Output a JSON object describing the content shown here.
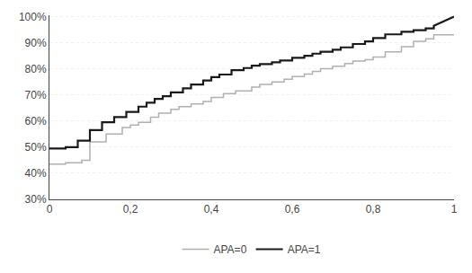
{
  "chart_data": {
    "type": "line",
    "series": [
      {
        "name": "APA=0",
        "color": "#b0b0b0",
        "x": [
          0,
          0.04,
          0.04,
          0.08,
          0.08,
          0.1,
          0.1,
          0.14,
          0.14,
          0.18,
          0.18,
          0.2,
          0.2,
          0.22,
          0.22,
          0.25,
          0.25,
          0.27,
          0.27,
          0.3,
          0.3,
          0.32,
          0.32,
          0.35,
          0.35,
          0.38,
          0.38,
          0.4,
          0.4,
          0.43,
          0.43,
          0.46,
          0.46,
          0.5,
          0.5,
          0.52,
          0.52,
          0.55,
          0.55,
          0.58,
          0.58,
          0.6,
          0.6,
          0.63,
          0.63,
          0.65,
          0.65,
          0.67,
          0.67,
          0.7,
          0.7,
          0.73,
          0.73,
          0.75,
          0.75,
          0.78,
          0.78,
          0.8,
          0.8,
          0.83,
          0.83,
          0.87,
          0.87,
          0.9,
          0.9,
          0.93,
          0.93,
          0.95,
          0.95,
          1.0
        ],
        "values": [
          0.435,
          0.435,
          0.44,
          0.44,
          0.45,
          0.45,
          0.52,
          0.52,
          0.55,
          0.55,
          0.575,
          0.575,
          0.585,
          0.585,
          0.595,
          0.595,
          0.615,
          0.615,
          0.63,
          0.63,
          0.645,
          0.645,
          0.655,
          0.655,
          0.665,
          0.665,
          0.675,
          0.675,
          0.69,
          0.69,
          0.705,
          0.705,
          0.715,
          0.715,
          0.73,
          0.73,
          0.74,
          0.74,
          0.75,
          0.75,
          0.76,
          0.76,
          0.77,
          0.77,
          0.78,
          0.78,
          0.79,
          0.79,
          0.8,
          0.8,
          0.81,
          0.81,
          0.82,
          0.82,
          0.83,
          0.83,
          0.835,
          0.835,
          0.845,
          0.845,
          0.865,
          0.865,
          0.885,
          0.885,
          0.905,
          0.905,
          0.915,
          0.915,
          0.93,
          0.93
        ]
      },
      {
        "name": "APA=1",
        "color": "#1a1a1a",
        "x": [
          0,
          0.04,
          0.04,
          0.07,
          0.07,
          0.1,
          0.1,
          0.13,
          0.13,
          0.16,
          0.16,
          0.19,
          0.19,
          0.22,
          0.22,
          0.24,
          0.24,
          0.26,
          0.26,
          0.28,
          0.28,
          0.3,
          0.3,
          0.33,
          0.33,
          0.35,
          0.35,
          0.38,
          0.38,
          0.4,
          0.4,
          0.42,
          0.42,
          0.45,
          0.45,
          0.48,
          0.48,
          0.5,
          0.5,
          0.52,
          0.52,
          0.55,
          0.55,
          0.57,
          0.57,
          0.6,
          0.6,
          0.63,
          0.63,
          0.65,
          0.65,
          0.67,
          0.67,
          0.7,
          0.7,
          0.72,
          0.72,
          0.75,
          0.75,
          0.78,
          0.78,
          0.8,
          0.8,
          0.83,
          0.83,
          0.87,
          0.87,
          0.9,
          0.9,
          0.93,
          0.93,
          0.95,
          0.95,
          1.0
        ],
        "values": [
          0.495,
          0.495,
          0.5,
          0.5,
          0.525,
          0.525,
          0.565,
          0.565,
          0.595,
          0.595,
          0.615,
          0.615,
          0.635,
          0.635,
          0.655,
          0.655,
          0.67,
          0.67,
          0.685,
          0.685,
          0.695,
          0.695,
          0.71,
          0.71,
          0.725,
          0.725,
          0.74,
          0.74,
          0.755,
          0.755,
          0.768,
          0.768,
          0.778,
          0.778,
          0.795,
          0.795,
          0.803,
          0.803,
          0.812,
          0.812,
          0.818,
          0.818,
          0.825,
          0.825,
          0.832,
          0.832,
          0.842,
          0.842,
          0.85,
          0.85,
          0.858,
          0.858,
          0.865,
          0.865,
          0.873,
          0.873,
          0.882,
          0.882,
          0.895,
          0.895,
          0.905,
          0.905,
          0.918,
          0.918,
          0.932,
          0.932,
          0.942,
          0.942,
          0.948,
          0.948,
          0.955,
          0.955,
          0.965,
          1.0
        ]
      }
    ],
    "xlim": [
      0,
      1.0
    ],
    "ylim": [
      0.3,
      1.005
    ],
    "xticks": [
      0,
      {
        "value": 0.2,
        "label": "0,2"
      },
      {
        "value": 0.4,
        "label": "0,4"
      },
      {
        "value": 0.6,
        "label": "0,6"
      },
      {
        "value": 0.8,
        "label": "0,8"
      },
      1
    ],
    "yticks": [
      {
        "value": 0.3,
        "label": "30%"
      },
      {
        "value": 0.4,
        "label": "40%"
      },
      {
        "value": 0.5,
        "label": "50%"
      },
      {
        "value": 0.6,
        "label": "60%"
      },
      {
        "value": 0.7,
        "label": "70%"
      },
      {
        "value": 0.8,
        "label": "80%"
      },
      {
        "value": 0.9,
        "label": "90%"
      },
      {
        "value": 1.0,
        "label": "100%"
      }
    ],
    "grid": "y",
    "legend": "bottom"
  }
}
